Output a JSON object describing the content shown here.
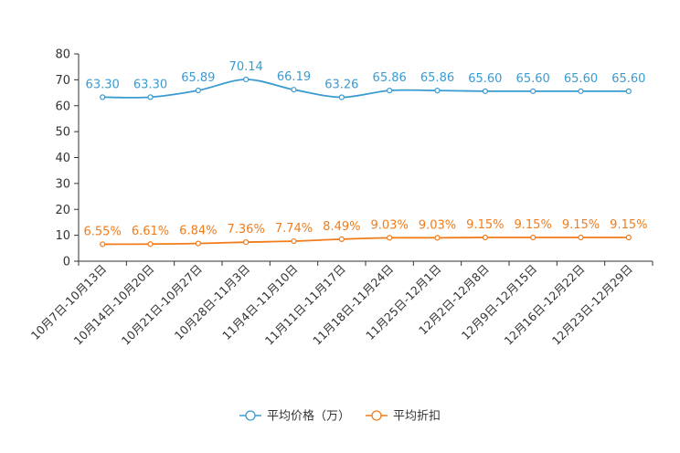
{
  "chart_data": {
    "type": "line",
    "categories": [
      "10月7日-10月13日",
      "10月14日-10月20日",
      "10月21日-10月27日",
      "10月28日-11月3日",
      "11月4日-11月10日",
      "11月11日-11月17日",
      "11月18日-11月24日",
      "11月25日-12月1日",
      "12月2日-12月8日",
      "12月9日-12月15日",
      "12月16日-12月22日",
      "12月23日-12月29日"
    ],
    "series": [
      {
        "name": "平均价格（万）",
        "color": "#3a9bd0",
        "values": [
          63.3,
          63.3,
          65.89,
          70.14,
          66.19,
          63.26,
          65.86,
          65.86,
          65.6,
          65.6,
          65.6,
          65.6
        ],
        "labels": [
          "63.30",
          "63.30",
          "65.89",
          "70.14",
          "66.19",
          "63.26",
          "65.86",
          "65.86",
          "65.60",
          "65.60",
          "65.60",
          "65.60"
        ]
      },
      {
        "name": "平均折扣",
        "color": "#f07c1c",
        "values": [
          6.55,
          6.61,
          6.84,
          7.36,
          7.74,
          8.49,
          9.03,
          9.03,
          9.15,
          9.15,
          9.15,
          9.15
        ],
        "labels": [
          "6.55%",
          "6.61%",
          "6.84%",
          "7.36%",
          "7.74%",
          "8.49%",
          "9.03%",
          "9.03%",
          "9.15%",
          "9.15%",
          "9.15%",
          "9.15%"
        ]
      }
    ],
    "yticks": [
      "0",
      "10",
      "20",
      "30",
      "40",
      "50",
      "60",
      "70",
      "80"
    ],
    "ylim": [
      0,
      80
    ],
    "grid": false,
    "legend": "bottom-center"
  }
}
